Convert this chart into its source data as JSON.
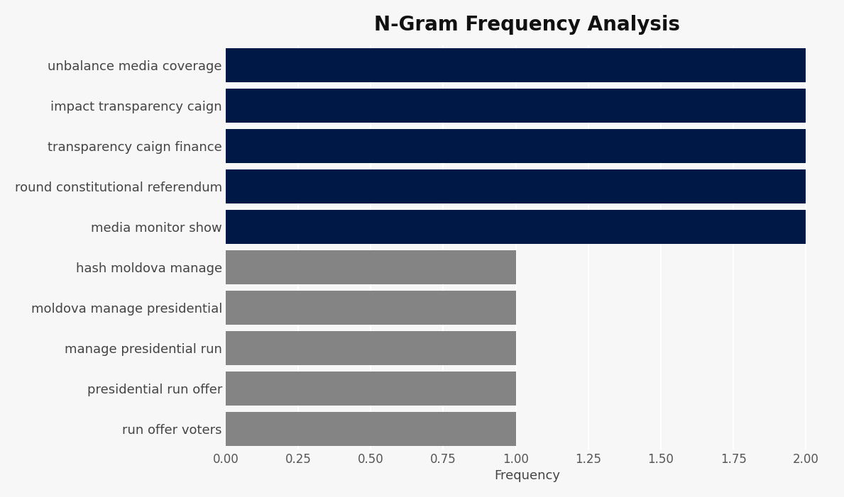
{
  "title": "N-Gram Frequency Analysis",
  "xlabel": "Frequency",
  "categories": [
    "run offer voters",
    "presidential run offer",
    "manage presidential run",
    "moldova manage presidential",
    "hash moldova manage",
    "media monitor show",
    "round constitutional referendum",
    "transparency caign finance",
    "impact transparency caign",
    "unbalance media coverage"
  ],
  "values": [
    1,
    1,
    1,
    1,
    1,
    2,
    2,
    2,
    2,
    2
  ],
  "bar_colors": [
    "#848484",
    "#848484",
    "#848484",
    "#848484",
    "#848484",
    "#001845",
    "#001845",
    "#001845",
    "#001845",
    "#001845"
  ],
  "xlim": [
    0,
    2.08
  ],
  "xticks": [
    0.0,
    0.25,
    0.5,
    0.75,
    1.0,
    1.25,
    1.5,
    1.75,
    2.0
  ],
  "xtick_labels": [
    "0.00",
    "0.25",
    "0.50",
    "0.75",
    "1.00",
    "1.25",
    "1.50",
    "1.75",
    "2.00"
  ],
  "background_color": "#F7F7F7",
  "plot_bg_color": "#F0F0F0",
  "title_fontsize": 20,
  "label_fontsize": 13,
  "tick_fontsize": 12,
  "bar_height": 0.85
}
